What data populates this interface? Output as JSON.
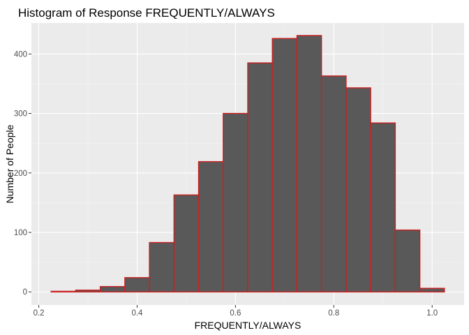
{
  "chart_data": {
    "type": "bar",
    "title": "Histogram of Response FREQUENTLY/ALWAYS",
    "xlabel": "FREQUENTLY/ALWAYS",
    "ylabel": "Number of People",
    "bin_width": 0.05,
    "bins": [
      {
        "start": 0.225,
        "end": 0.275,
        "count": 1
      },
      {
        "start": 0.275,
        "end": 0.325,
        "count": 3
      },
      {
        "start": 0.325,
        "end": 0.375,
        "count": 9
      },
      {
        "start": 0.375,
        "end": 0.425,
        "count": 24
      },
      {
        "start": 0.425,
        "end": 0.475,
        "count": 83
      },
      {
        "start": 0.475,
        "end": 0.525,
        "count": 163
      },
      {
        "start": 0.525,
        "end": 0.575,
        "count": 219
      },
      {
        "start": 0.575,
        "end": 0.625,
        "count": 300
      },
      {
        "start": 0.625,
        "end": 0.675,
        "count": 385
      },
      {
        "start": 0.675,
        "end": 0.725,
        "count": 426
      },
      {
        "start": 0.725,
        "end": 0.775,
        "count": 431
      },
      {
        "start": 0.775,
        "end": 0.825,
        "count": 363
      },
      {
        "start": 0.825,
        "end": 0.875,
        "count": 343
      },
      {
        "start": 0.875,
        "end": 0.925,
        "count": 284
      },
      {
        "start": 0.925,
        "end": 0.975,
        "count": 104
      },
      {
        "start": 0.975,
        "end": 1.025,
        "count": 6
      }
    ],
    "xlim": [
      0.185,
      1.065
    ],
    "ylim": [
      -22,
      452
    ],
    "x_ticks": [
      0.2,
      0.4,
      0.6,
      0.8,
      1.0
    ],
    "x_tick_labels": [
      "0.2",
      "0.4",
      "0.6",
      "0.8",
      "1.0"
    ],
    "y_ticks": [
      0,
      100,
      200,
      300,
      400
    ],
    "y_tick_labels": [
      "0",
      "100",
      "200",
      "300",
      "400"
    ],
    "grid": true,
    "colors": {
      "bar_fill": "#595959",
      "bar_outline": "#cc1f1f",
      "panel_background": "#ebebeb",
      "grid_major": "#ffffff",
      "grid_minor": "#f5f5f5",
      "tick_mark": "#333333"
    }
  }
}
